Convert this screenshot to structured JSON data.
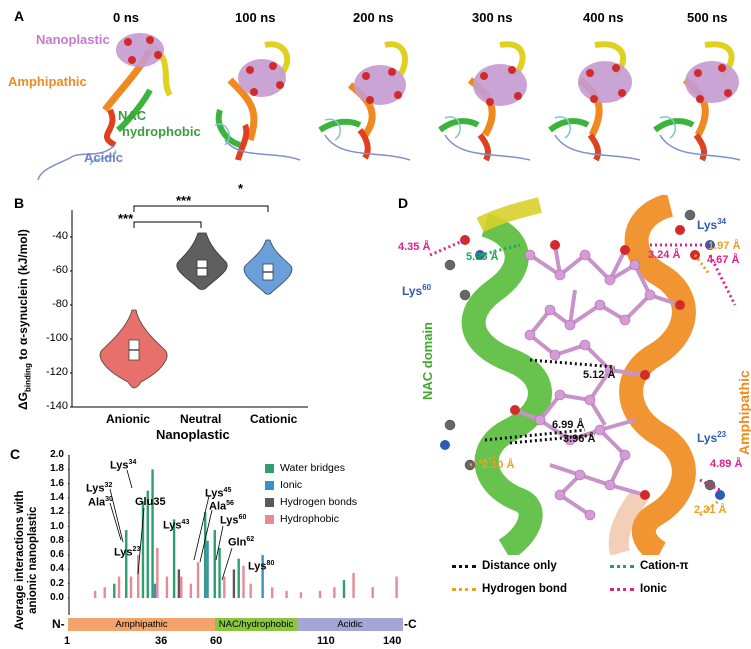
{
  "panel_a": {
    "letter": "A",
    "timepoints": [
      "0 ns",
      "100 ns",
      "200 ns",
      "300 ns",
      "400 ns",
      "500 ns"
    ],
    "labels": {
      "nanoplastic": "Nanoplastic",
      "amphipathic": "Amphipathic",
      "nac": "NAC",
      "hydrophobic": "hydrophobic",
      "acidic": "Acidic"
    }
  },
  "panel_b": {
    "letter": "B",
    "ylabel_prefix": "ΔG",
    "ylabel_sub": "binding",
    "ylabel_suffix": " to α-synuclein (kJ/mol)",
    "xlabel": "Nanoplastic",
    "categories": [
      "Anionic",
      "Neutral",
      "Cationic"
    ],
    "yticks": [
      "-40",
      "-60",
      "-80",
      "-100",
      "-120",
      "-140"
    ],
    "significance": [
      "***",
      "***",
      "*"
    ],
    "colors": {
      "anionic": "#e8706a",
      "neutral": "#5f5f5f",
      "cationic": "#6b9fd9"
    }
  },
  "panel_c": {
    "letter": "C",
    "ylabel_line1": "Average interactions with",
    "ylabel_line2": "anionic nanoplastic",
    "yticks": [
      "2.0",
      "1.8",
      "1.6",
      "1.4",
      "1.2",
      "1.0",
      "0.8",
      "0.6",
      "0.4",
      "0.2",
      "0.0"
    ],
    "xticks": [
      "1",
      "36",
      "60",
      "110",
      "140"
    ],
    "n_label": "N-",
    "c_label": "-C",
    "regions": [
      "Amphipathic",
      "NAC/hydrophobic",
      "Acidic"
    ],
    "legend": [
      "Water bridges",
      "Ionic",
      "Hydrogen bonds",
      "Hydrophobic"
    ],
    "legend_colors": [
      "#2e9e6e",
      "#3c8cc8",
      "#5a5a5a",
      "#e58a96"
    ],
    "residue_labels": [
      {
        "name": "Lys",
        "sup": "34"
      },
      {
        "name": "Lys",
        "sup": "32"
      },
      {
        "name": "Ala",
        "sup": "30"
      },
      {
        "name": "Glu35",
        "sup": ""
      },
      {
        "name": "Lys",
        "sup": "45"
      },
      {
        "name": "Ala",
        "sup": "56"
      },
      {
        "name": "Lys",
        "sup": "43"
      },
      {
        "name": "Lys",
        "sup": "23"
      },
      {
        "name": "Lys",
        "sup": "60"
      },
      {
        "name": "Gln",
        "sup": "62"
      },
      {
        "name": "Lys",
        "sup": "80"
      }
    ]
  },
  "panel_d": {
    "letter": "D",
    "residues": [
      {
        "name": "Lys",
        "sup": "34"
      },
      {
        "name": "Lys",
        "sup": "60"
      },
      {
        "name": "Lys",
        "sup": "23"
      }
    ],
    "domains": [
      "NAC domain",
      "Amphipathic"
    ],
    "distances": [
      "4.35 Å",
      "5.95 Å",
      "3.24 Å",
      "1.97 Å",
      "4.67 Å",
      "5.12 Å",
      "6.99 Å",
      "3.96 Å",
      "2.10 Å",
      "4.89 Å",
      "2.31 Å"
    ],
    "legend": [
      "Distance only",
      "Cation-π",
      "Hydrogen bond",
      "Ionic"
    ],
    "legend_colors": [
      "#111111",
      "#1aa55a",
      "#f0a020",
      "#e0208c"
    ]
  }
}
